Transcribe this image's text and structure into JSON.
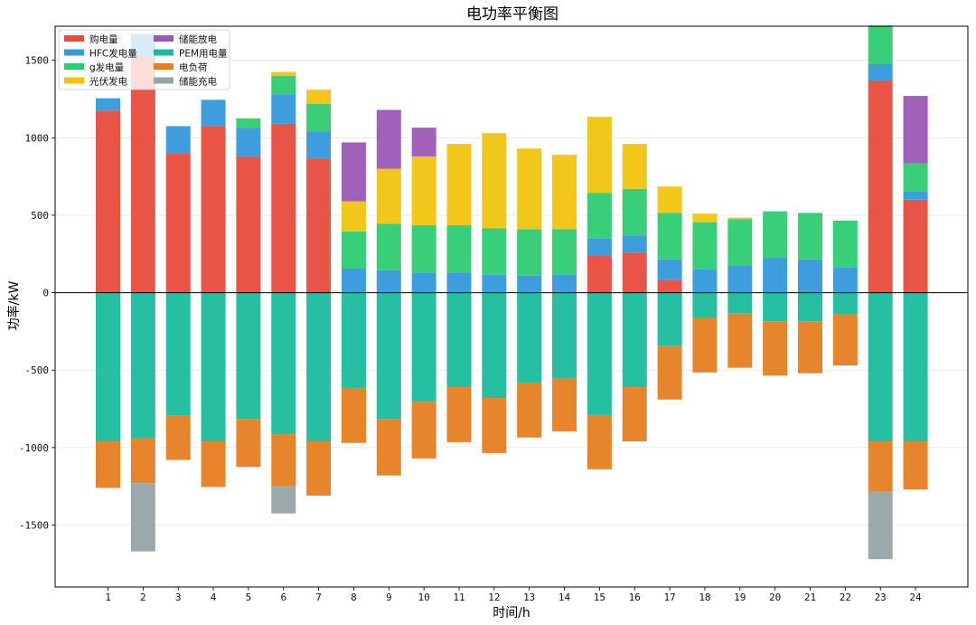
{
  "chart_data": {
    "type": "bar",
    "stacked": true,
    "title": "电功率平衡图",
    "xlabel": "时间/h",
    "ylabel": "功率/kW",
    "ylim": [
      -1900,
      1720
    ],
    "yticks": [
      -1500,
      -1000,
      -500,
      0,
      500,
      1000,
      1500
    ],
    "grid": true,
    "legend_position": "top-left",
    "categories": [
      "1",
      "2",
      "3",
      "4",
      "5",
      "6",
      "7",
      "8",
      "9",
      "10",
      "11",
      "12",
      "13",
      "14",
      "15",
      "16",
      "17",
      "18",
      "19",
      "20",
      "21",
      "22",
      "23",
      "24"
    ],
    "positive_series": [
      {
        "name": "购电量",
        "color": "#e74c3c",
        "values": [
          1175,
          1520,
          900,
          1075,
          880,
          1090,
          865,
          0,
          0,
          0,
          0,
          0,
          0,
          0,
          240,
          255,
          80,
          0,
          0,
          0,
          0,
          0,
          1370,
          600
        ]
      },
      {
        "name": "HFC发电量",
        "color": "#3498db",
        "values": [
          80,
          150,
          175,
          170,
          185,
          190,
          175,
          155,
          145,
          130,
          130,
          115,
          110,
          115,
          110,
          115,
          135,
          150,
          175,
          225,
          215,
          165,
          105,
          55
        ]
      },
      {
        "name": "g发电量",
        "color": "#2ecc71",
        "values": [
          0,
          0,
          0,
          0,
          60,
          120,
          180,
          240,
          300,
          305,
          305,
          300,
          300,
          295,
          295,
          300,
          300,
          305,
          300,
          300,
          300,
          300,
          250,
          180
        ]
      },
      {
        "name": "光伏发电",
        "color": "#f1c40f",
        "values": [
          0,
          0,
          0,
          0,
          0,
          25,
          90,
          195,
          355,
          445,
          525,
          615,
          520,
          480,
          490,
          290,
          170,
          55,
          10,
          0,
          0,
          0,
          0,
          0
        ]
      },
      {
        "name": "储能放电",
        "color": "#9b59b6",
        "values": [
          0,
          0,
          0,
          0,
          0,
          0,
          0,
          380,
          380,
          185,
          0,
          0,
          0,
          0,
          0,
          0,
          0,
          0,
          0,
          0,
          0,
          0,
          0,
          435
        ]
      }
    ],
    "negative_series": [
      {
        "name": "PEM用电量",
        "color": "#1abc9c",
        "values": [
          -960,
          -940,
          -795,
          -960,
          -815,
          -915,
          -960,
          -615,
          -815,
          -705,
          -610,
          -680,
          -580,
          -555,
          -790,
          -610,
          -345,
          -160,
          -135,
          -185,
          -185,
          -140,
          -960,
          -960
        ]
      },
      {
        "name": "电负荷",
        "color": "#e67e22",
        "values": [
          -300,
          -290,
          -285,
          -295,
          -310,
          -335,
          -350,
          -355,
          -365,
          -365,
          -355,
          -355,
          -355,
          -340,
          -350,
          -350,
          -345,
          -355,
          -350,
          -350,
          -335,
          -330,
          -325,
          -310
        ]
      },
      {
        "name": "储能充电",
        "color": "#95a5a6",
        "values": [
          0,
          -440,
          0,
          0,
          0,
          -175,
          0,
          0,
          0,
          0,
          0,
          0,
          0,
          0,
          0,
          0,
          0,
          0,
          0,
          0,
          0,
          0,
          -435,
          0
        ]
      }
    ],
    "legend_order": [
      "购电量",
      "储能放电",
      "HFC发电量",
      "PEM用电量",
      "g发电量",
      "电负荷",
      "光伏发电",
      "储能充电"
    ]
  }
}
